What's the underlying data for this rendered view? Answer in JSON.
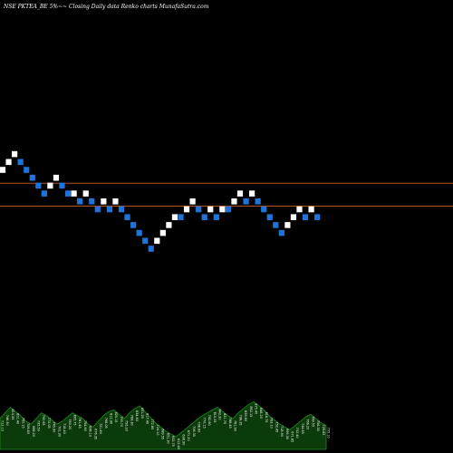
{
  "chart_data": {
    "type": "renko",
    "title": "NSE PKTEA_BE 5%~~ Closing Daily data  Renko  charts MunafaSutra.com",
    "colors": {
      "background": "#000000",
      "up_brick": "#ffffff",
      "down_brick": "#1e74d9",
      "reference_line": "#b4531d",
      "volume_fill": "#0b3a0b",
      "volume_stroke": "#1f8a1f",
      "volume_text": "#ffffff"
    },
    "bricks": [
      {
        "dir": "up",
        "level": 14
      },
      {
        "dir": "up",
        "level": 15
      },
      {
        "dir": "up",
        "level": 16
      },
      {
        "dir": "down",
        "level": 15
      },
      {
        "dir": "down",
        "level": 14
      },
      {
        "dir": "down",
        "level": 13
      },
      {
        "dir": "down",
        "level": 12
      },
      {
        "dir": "down",
        "level": 11
      },
      {
        "dir": "up",
        "level": 12
      },
      {
        "dir": "up",
        "level": 13
      },
      {
        "dir": "down",
        "level": 12
      },
      {
        "dir": "down",
        "level": 11
      },
      {
        "dir": "up",
        "level": 11
      },
      {
        "dir": "down",
        "level": 10
      },
      {
        "dir": "up",
        "level": 11
      },
      {
        "dir": "down",
        "level": 10
      },
      {
        "dir": "down",
        "level": 9
      },
      {
        "dir": "up",
        "level": 10
      },
      {
        "dir": "down",
        "level": 9
      },
      {
        "dir": "up",
        "level": 10
      },
      {
        "dir": "down",
        "level": 9
      },
      {
        "dir": "down",
        "level": 8
      },
      {
        "dir": "down",
        "level": 7
      },
      {
        "dir": "down",
        "level": 6
      },
      {
        "dir": "down",
        "level": 5
      },
      {
        "dir": "down",
        "level": 4
      },
      {
        "dir": "up",
        "level": 5
      },
      {
        "dir": "up",
        "level": 6
      },
      {
        "dir": "up",
        "level": 7
      },
      {
        "dir": "up",
        "level": 8
      },
      {
        "dir": "down",
        "level": 8
      },
      {
        "dir": "up",
        "level": 9
      },
      {
        "dir": "up",
        "level": 10
      },
      {
        "dir": "down",
        "level": 9
      },
      {
        "dir": "down",
        "level": 8
      },
      {
        "dir": "up",
        "level": 9
      },
      {
        "dir": "down",
        "level": 8
      },
      {
        "dir": "up",
        "level": 9
      },
      {
        "dir": "down",
        "level": 9
      },
      {
        "dir": "up",
        "level": 10
      },
      {
        "dir": "up",
        "level": 11
      },
      {
        "dir": "down",
        "level": 10
      },
      {
        "dir": "up",
        "level": 11
      },
      {
        "dir": "down",
        "level": 10
      },
      {
        "dir": "down",
        "level": 9
      },
      {
        "dir": "down",
        "level": 8
      },
      {
        "dir": "down",
        "level": 7
      },
      {
        "dir": "down",
        "level": 6
      },
      {
        "dir": "up",
        "level": 7
      },
      {
        "dir": "up",
        "level": 8
      },
      {
        "dir": "up",
        "level": 9
      },
      {
        "dir": "down",
        "level": 8
      },
      {
        "dir": "up",
        "level": 9
      },
      {
        "dir": "down",
        "level": 8
      }
    ],
    "reference_lines": [
      {
        "level": 12.3
      },
      {
        "level": 9.4
      }
    ],
    "volume": [
      22,
      26,
      30,
      27,
      24,
      20,
      18,
      22,
      26,
      24,
      21,
      18,
      20,
      23,
      26,
      24,
      22,
      18,
      16,
      20,
      24,
      27,
      28,
      25,
      22,
      26,
      29,
      31,
      27,
      23,
      19,
      16,
      13,
      11,
      9,
      12,
      15,
      18,
      21,
      24,
      26,
      28,
      30,
      27,
      24,
      22,
      26,
      29,
      32,
      34,
      31,
      28,
      24,
      21,
      18,
      16,
      14,
      17,
      20,
      23,
      25,
      22,
      19,
      17
    ],
    "volume_labels": [
      "712.10",
      "746.30",
      "813.35",
      "801.40",
      "762.15",
      "709.80",
      "688.20",
      "735.50",
      "790.65",
      "772.05",
      "745.90",
      "701.30",
      "718.40",
      "760.20",
      "805.75",
      "781.45",
      "754.60",
      "698.10",
      "676.35",
      "721.80",
      "768.05",
      "812.90",
      "825.15",
      "793.70",
      "756.20",
      "789.30",
      "834.60",
      "851.25",
      "817.40",
      "772.85",
      "724.10",
      "689.55",
      "651.30",
      "632.75",
      "612.40",
      "638.90",
      "671.20",
      "706.35",
      "738.80",
      "770.15",
      "792.60",
      "815.05",
      "842.30",
      "821.70",
      "788.45",
      "761.90",
      "798.35",
      "829.60",
      "862.15",
      "875.40",
      "848.20",
      "816.75",
      "783.10",
      "752.45",
      "718.90",
      "695.30",
      "671.85",
      "702.40",
      "734.65",
      "766.20",
      "789.55",
      "758.30",
      "729.85",
      "705.10"
    ],
    "grid": false,
    "legend": "none",
    "xlabel": "",
    "ylabel": ""
  }
}
